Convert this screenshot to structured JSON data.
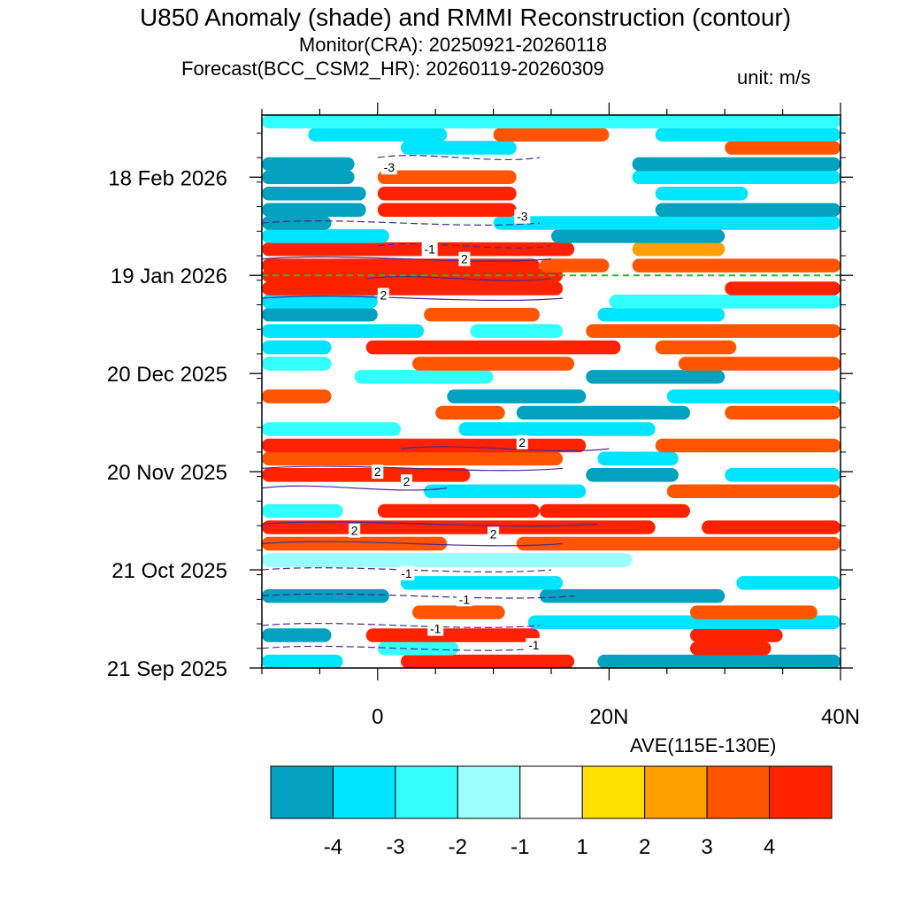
{
  "header": {
    "title": "U850 Anomaly (shade) and RMMI Reconstruction (contour)",
    "monitor_label": "Monitor(CRA): 20250921-20260118",
    "forecast_label": "Forecast(BCC_CSM2_HR): 20260119-20260309",
    "unit_label": "unit: m/s",
    "region_label": "AVE(115E-130E)"
  },
  "colors": {
    "colorbar": [
      "#00a2bf",
      "#00e5ff",
      "#33ffff",
      "#99ffff",
      "#ffffff",
      "#ffe000",
      "#ffa000",
      "#ff5500",
      "#ff2200"
    ],
    "contour_line": "#4b2a8c",
    "forecast_divider": "#22bb22"
  },
  "chart_data": {
    "type": "heatmap",
    "x_axis": {
      "range": [
        -10,
        40
      ],
      "ticks": [
        0,
        20,
        40
      ],
      "tick_labels": [
        "0",
        "20N",
        "40N"
      ]
    },
    "y_axis": {
      "range": [
        "2025-09-21",
        "2026-03-09"
      ],
      "ticks": [
        "2025-09-21",
        "2025-10-21",
        "2025-11-20",
        "2025-12-20",
        "2026-01-19",
        "2026-02-18"
      ],
      "tick_labels": [
        "21 Sep 2025",
        "21 Oct 2025",
        "20 Nov 2025",
        "20 Dec 2025",
        "19 Jan 2026",
        "18 Feb 2026"
      ]
    },
    "forecast_start": "2026-01-19",
    "colorbar": {
      "levels": [
        "-4",
        "-3",
        "-2",
        "-1",
        "1",
        "2",
        "3",
        "4"
      ]
    },
    "bands": [
      {
        "date": "2025-09-23",
        "x0": 2,
        "x1": 17,
        "level": "4"
      },
      {
        "date": "2025-09-23",
        "x0": -10,
        "x1": -3,
        "level": "-3"
      },
      {
        "date": "2025-09-23",
        "x0": 19,
        "x1": 40,
        "level": "-4"
      },
      {
        "date": "2025-09-27",
        "x0": 27,
        "x1": 34,
        "level": "4"
      },
      {
        "date": "2025-09-27",
        "x0": 0,
        "x1": 7,
        "level": "-2"
      },
      {
        "date": "2025-10-01",
        "x0": -1,
        "x1": 14,
        "level": "4"
      },
      {
        "date": "2025-10-01",
        "x0": 27,
        "x1": 35,
        "level": "4"
      },
      {
        "date": "2025-10-01",
        "x0": -10,
        "x1": -4,
        "level": "-4"
      },
      {
        "date": "2025-10-05",
        "x0": 13,
        "x1": 40,
        "level": "-3"
      },
      {
        "date": "2025-10-08",
        "x0": 3,
        "x1": 11,
        "level": "3"
      },
      {
        "date": "2025-10-08",
        "x0": 27,
        "x1": 38,
        "level": "3"
      },
      {
        "date": "2025-10-13",
        "x0": -10,
        "x1": 1,
        "level": "-4"
      },
      {
        "date": "2025-10-13",
        "x0": 14,
        "x1": 30,
        "level": "-4"
      },
      {
        "date": "2025-10-17",
        "x0": 2,
        "x1": 16,
        "level": "-3"
      },
      {
        "date": "2025-10-17",
        "x0": 31,
        "x1": 40,
        "level": "-3"
      },
      {
        "date": "2025-10-24",
        "x0": -10,
        "x1": 22,
        "level": "-1"
      },
      {
        "date": "2025-10-29",
        "x0": -10,
        "x1": 6,
        "level": "3"
      },
      {
        "date": "2025-10-29",
        "x0": 12,
        "x1": 40,
        "level": "3"
      },
      {
        "date": "2025-11-03",
        "x0": -10,
        "x1": 24,
        "level": "4"
      },
      {
        "date": "2025-11-03",
        "x0": 28,
        "x1": 40,
        "level": "4"
      },
      {
        "date": "2025-11-08",
        "x0": 0,
        "x1": 14,
        "level": "4"
      },
      {
        "date": "2025-11-08",
        "x0": 14,
        "x1": 27,
        "level": "4"
      },
      {
        "date": "2025-11-08",
        "x0": -10,
        "x1": -3,
        "level": "-2"
      },
      {
        "date": "2025-11-14",
        "x0": 4,
        "x1": 18,
        "level": "-3"
      },
      {
        "date": "2025-11-14",
        "x0": 25,
        "x1": 40,
        "level": "3"
      },
      {
        "date": "2025-11-19",
        "x0": -10,
        "x1": 8,
        "level": "4"
      },
      {
        "date": "2025-11-19",
        "x0": 18,
        "x1": 26,
        "level": "-4"
      },
      {
        "date": "2025-11-19",
        "x0": 30,
        "x1": 40,
        "level": "-3"
      },
      {
        "date": "2025-11-24",
        "x0": -10,
        "x1": 16,
        "level": "3"
      },
      {
        "date": "2025-11-24",
        "x0": 19,
        "x1": 26,
        "level": "-3"
      },
      {
        "date": "2025-11-28",
        "x0": -10,
        "x1": 18,
        "level": "4"
      },
      {
        "date": "2025-11-28",
        "x0": 24,
        "x1": 40,
        "level": "3"
      },
      {
        "date": "2025-12-03",
        "x0": 7,
        "x1": 24,
        "level": "-3"
      },
      {
        "date": "2025-12-03",
        "x0": -10,
        "x1": 2,
        "level": "-2"
      },
      {
        "date": "2025-12-08",
        "x0": 5,
        "x1": 11,
        "level": "3"
      },
      {
        "date": "2025-12-08",
        "x0": 12,
        "x1": 27,
        "level": "-4"
      },
      {
        "date": "2025-12-08",
        "x0": 30,
        "x1": 40,
        "level": "3"
      },
      {
        "date": "2025-12-13",
        "x0": -10,
        "x1": -4,
        "level": "3"
      },
      {
        "date": "2025-12-13",
        "x0": 6,
        "x1": 18,
        "level": "-4"
      },
      {
        "date": "2025-12-13",
        "x0": 25,
        "x1": 40,
        "level": "-3"
      },
      {
        "date": "2025-12-19",
        "x0": -2,
        "x1": 10,
        "level": "-2"
      },
      {
        "date": "2025-12-19",
        "x0": 18,
        "x1": 30,
        "level": "-4"
      },
      {
        "date": "2025-12-23",
        "x0": 3,
        "x1": 17,
        "level": "3"
      },
      {
        "date": "2025-12-23",
        "x0": 26,
        "x1": 40,
        "level": "3"
      },
      {
        "date": "2025-12-23",
        "x0": -10,
        "x1": -4,
        "level": "-2"
      },
      {
        "date": "2025-12-28",
        "x0": -1,
        "x1": 21,
        "level": "4"
      },
      {
        "date": "2025-12-28",
        "x0": 24,
        "x1": 31,
        "level": "3"
      },
      {
        "date": "2025-12-28",
        "x0": -10,
        "x1": -4,
        "level": "-3"
      },
      {
        "date": "2026-01-02",
        "x0": -10,
        "x1": 4,
        "level": "-3"
      },
      {
        "date": "2026-01-02",
        "x0": 8,
        "x1": 16,
        "level": "-2"
      },
      {
        "date": "2026-01-02",
        "x0": 18,
        "x1": 40,
        "level": "3"
      },
      {
        "date": "2026-01-07",
        "x0": 4,
        "x1": 14,
        "level": "3"
      },
      {
        "date": "2026-01-07",
        "x0": -10,
        "x1": 0,
        "level": "-4"
      },
      {
        "date": "2026-01-07",
        "x0": 19,
        "x1": 30,
        "level": "-3"
      },
      {
        "date": "2026-01-11",
        "x0": -10,
        "x1": 0,
        "level": "-3"
      },
      {
        "date": "2026-01-11",
        "x0": 20,
        "x1": 40,
        "level": "-2"
      },
      {
        "date": "2026-01-15",
        "x0": -10,
        "x1": 16,
        "level": "4"
      },
      {
        "date": "2026-01-15",
        "x0": 30,
        "x1": 40,
        "level": "4"
      },
      {
        "date": "2026-01-19",
        "x0": -10,
        "x1": 16,
        "level": "4"
      },
      {
        "date": "2026-01-22",
        "x0": -10,
        "x1": 14,
        "level": "4"
      },
      {
        "date": "2026-01-22",
        "x0": 14,
        "x1": 20,
        "level": "3"
      },
      {
        "date": "2026-01-22",
        "x0": 22,
        "x1": 40,
        "level": "3"
      },
      {
        "date": "2026-01-27",
        "x0": -10,
        "x1": 17,
        "level": "4"
      },
      {
        "date": "2026-01-27",
        "x0": 22,
        "x1": 30,
        "level": "2"
      },
      {
        "date": "2026-01-31",
        "x0": -10,
        "x1": 1,
        "level": "-3"
      },
      {
        "date": "2026-01-31",
        "x0": 15,
        "x1": 30,
        "level": "-4"
      },
      {
        "date": "2026-02-04",
        "x0": -10,
        "x1": -4,
        "level": "-4"
      },
      {
        "date": "2026-02-04",
        "x0": 10,
        "x1": 40,
        "level": "-3"
      },
      {
        "date": "2026-02-08",
        "x0": -10,
        "x1": -1,
        "level": "-4"
      },
      {
        "date": "2026-02-08",
        "x0": 0,
        "x1": 12,
        "level": "4"
      },
      {
        "date": "2026-02-08",
        "x0": 24,
        "x1": 40,
        "level": "-4"
      },
      {
        "date": "2026-02-13",
        "x0": -10,
        "x1": -1,
        "level": "-4"
      },
      {
        "date": "2026-02-13",
        "x0": 0,
        "x1": 12,
        "level": "4"
      },
      {
        "date": "2026-02-13",
        "x0": 24,
        "x1": 32,
        "level": "-3"
      },
      {
        "date": "2026-02-18",
        "x0": -10,
        "x1": -2,
        "level": "-4"
      },
      {
        "date": "2026-02-18",
        "x0": 0,
        "x1": 12,
        "level": "3"
      },
      {
        "date": "2026-02-18",
        "x0": 22,
        "x1": 40,
        "level": "-3"
      },
      {
        "date": "2026-02-22",
        "x0": -10,
        "x1": -2,
        "level": "-4"
      },
      {
        "date": "2026-02-22",
        "x0": 22,
        "x1": 40,
        "level": "-4"
      },
      {
        "date": "2026-02-27",
        "x0": 2,
        "x1": 12,
        "level": "-3"
      },
      {
        "date": "2026-02-27",
        "x0": 30,
        "x1": 40,
        "level": "3"
      },
      {
        "date": "2026-03-03",
        "x0": -6,
        "x1": 6,
        "level": "-3"
      },
      {
        "date": "2026-03-03",
        "x0": 10,
        "x1": 20,
        "level": "3"
      },
      {
        "date": "2026-03-03",
        "x0": 24,
        "x1": 40,
        "level": "-3"
      },
      {
        "date": "2026-03-07",
        "x0": -10,
        "x1": 40,
        "level": "-2"
      }
    ],
    "contours": [
      {
        "level": "2",
        "date": "2025-10-29",
        "x0": -10,
        "x1": 16,
        "dashed": false
      },
      {
        "level": "2",
        "date": "2025-11-04",
        "x0": -10,
        "x1": 19,
        "dashed": false
      },
      {
        "level": "2",
        "date": "2025-11-15",
        "x0": -10,
        "x1": 6,
        "dashed": false
      },
      {
        "level": "2",
        "date": "2025-11-21",
        "x0": -10,
        "x1": 16,
        "dashed": false
      },
      {
        "level": "2",
        "date": "2025-11-27",
        "x0": 2,
        "x1": 20,
        "dashed": false
      },
      {
        "level": "2",
        "date": "2026-01-12",
        "x0": -10,
        "x1": 16,
        "dashed": false
      },
      {
        "level": "2",
        "date": "2026-01-18",
        "x0": -1,
        "x1": 15,
        "dashed": false
      },
      {
        "level": "2",
        "date": "2026-01-24",
        "x0": -10,
        "x1": 15,
        "dashed": false
      },
      {
        "level": "-1",
        "date": "2025-09-27",
        "x0": -10,
        "x1": 14,
        "dashed": true
      },
      {
        "level": "-1",
        "date": "2025-10-04",
        "x0": -10,
        "x1": 14,
        "dashed": true
      },
      {
        "level": "-1",
        "date": "2025-10-13",
        "x0": -10,
        "x1": 17,
        "dashed": true
      },
      {
        "level": "-1",
        "date": "2025-10-21",
        "x0": -10,
        "x1": 15,
        "dashed": true
      },
      {
        "level": "-1",
        "date": "2026-01-28",
        "x0": 0,
        "x1": 15,
        "dashed": true
      },
      {
        "level": "-3",
        "date": "2026-02-04",
        "x0": -10,
        "x1": 14,
        "dashed": true
      },
      {
        "level": "-3",
        "date": "2026-02-24",
        "x0": 0,
        "x1": 14,
        "dashed": true
      }
    ],
    "contour_labels": [
      {
        "text": "2",
        "x": -2,
        "date": "2025-11-02"
      },
      {
        "text": "2",
        "x": 10,
        "date": "2025-11-01"
      },
      {
        "text": "2",
        "x": 2.5,
        "date": "2025-11-17"
      },
      {
        "text": "2",
        "x": 0,
        "date": "2025-11-20"
      },
      {
        "text": "2",
        "x": 12.5,
        "date": "2025-11-29"
      },
      {
        "text": "2",
        "x": 0.5,
        "date": "2026-01-13"
      },
      {
        "text": "2",
        "x": 7.5,
        "date": "2026-01-24"
      },
      {
        "text": "-1",
        "x": 4.5,
        "date": "2026-01-27"
      },
      {
        "text": "-3",
        "x": 12.5,
        "date": "2026-02-06"
      },
      {
        "text": "-3",
        "x": 1,
        "date": "2026-02-21"
      },
      {
        "text": "-1",
        "x": 2.5,
        "date": "2025-10-20"
      },
      {
        "text": "-1",
        "x": 7.5,
        "date": "2025-10-12"
      },
      {
        "text": "-1",
        "x": 5,
        "date": "2025-10-03"
      },
      {
        "text": "-1",
        "x": 13.5,
        "date": "2025-09-28"
      }
    ]
  }
}
